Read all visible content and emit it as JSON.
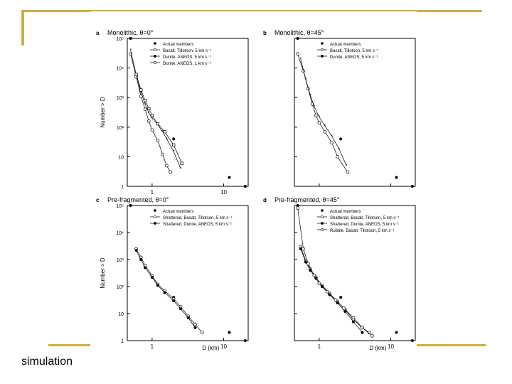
{
  "slide": {
    "caption": "simulation",
    "accent_color": "#c9ae4c"
  },
  "chart_data": [
    {
      "type": "scatter",
      "panel_letter": "a",
      "title": "Monolithic, θ=0°",
      "xlabel": "",
      "ylabel": "Number > D",
      "xscale": "log",
      "yscale": "log",
      "xlim": [
        0.45,
        22
      ],
      "ylim": [
        1,
        100000
      ],
      "x_ticks": [
        "1",
        "10"
      ],
      "y_ticks": [
        "1",
        "10",
        "10²",
        "10³",
        "10⁴",
        "10⁵"
      ],
      "legend": [
        "Actual members",
        "Basalt, Tillotson, 5 km s⁻¹",
        "Dunite, ANEOS, 5 km s⁻¹",
        "Dunite, ANEOS, 1 km s⁻¹"
      ],
      "legend_position": "top-right",
      "series": [
        {
          "name": "Actual members",
          "marker": "dot",
          "x": [
            0.5,
            2.0,
            12.0,
            20.0
          ],
          "y": [
            100000,
            40,
            2,
            1
          ]
        },
        {
          "name": "Basalt, Tillotson, 5 km s⁻¹",
          "marker": "circle",
          "x": [
            0.5,
            0.6,
            0.7,
            0.8,
            0.9,
            1.0,
            1.2,
            1.4,
            1.6,
            1.8
          ],
          "y": [
            30000,
            5000,
            1100,
            400,
            160,
            80,
            35,
            12,
            5,
            3
          ]
        },
        {
          "name": "Dunite, ANEOS, 5 km s⁻¹",
          "marker": "star",
          "x": [
            0.5,
            0.6,
            0.7,
            0.8,
            0.9,
            1.0,
            1.2,
            1.4,
            1.6,
            2.0,
            2.5
          ],
          "y": [
            40000,
            6000,
            1500,
            600,
            300,
            200,
            120,
            70,
            40,
            15,
            4
          ]
        },
        {
          "name": "Dunite, ANEOS, 1 km s⁻¹",
          "marker": "square",
          "x": [
            0.6,
            0.7,
            0.8,
            0.9,
            1.0,
            1.2,
            1.5,
            2.0,
            2.6
          ],
          "y": [
            6000,
            1800,
            800,
            420,
            250,
            130,
            70,
            25,
            6
          ]
        }
      ]
    },
    {
      "type": "scatter",
      "panel_letter": "b",
      "title": "Monolithic, θ=45°",
      "xlabel": "",
      "ylabel": "",
      "xscale": "log",
      "yscale": "log",
      "xlim": [
        0.45,
        22
      ],
      "ylim": [
        1,
        100000
      ],
      "legend": [
        "Actual members",
        "Basalt, Tillotson, 5 km s⁻¹",
        "Dunite, ANEOS, 5 km s⁻¹"
      ],
      "legend_position": "top-right",
      "series": [
        {
          "name": "Actual members",
          "marker": "dot",
          "x": [
            0.5,
            2.0,
            12.0,
            20.0
          ],
          "y": [
            100000,
            40,
            2,
            1
          ]
        },
        {
          "name": "Basalt, Tillotson, 5 km s⁻¹",
          "marker": "circle",
          "x": [
            0.5,
            0.6,
            0.7,
            0.8,
            0.9,
            1.0,
            1.2,
            1.5,
            1.8,
            2.5
          ],
          "y": [
            30000,
            8000,
            2000,
            600,
            250,
            140,
            70,
            30,
            10,
            3
          ]
        },
        {
          "name": "Dunite, ANEOS, 5 km s⁻¹",
          "marker": "star",
          "x": [
            0.55,
            0.65,
            0.75,
            0.85,
            1.0,
            1.2,
            1.5,
            1.9,
            2.4
          ],
          "y": [
            20000,
            4000,
            1200,
            500,
            220,
            110,
            50,
            18,
            5
          ]
        }
      ]
    },
    {
      "type": "scatter",
      "panel_letter": "c",
      "title": "Pre-fragmented, θ=0°",
      "xlabel": "D (km)",
      "ylabel": "Number > D",
      "xscale": "log",
      "yscale": "log",
      "xlim": [
        0.45,
        22
      ],
      "ylim": [
        1,
        100000
      ],
      "x_ticks": [
        "1",
        "10"
      ],
      "y_ticks": [
        "1",
        "10",
        "10²",
        "10³",
        "10⁴",
        "10⁵"
      ],
      "legend": [
        "Actual members",
        "Shattered, Basalt, Tillotson, 5 km s⁻¹",
        "Shattered, Dunite, ANEOS, 5 km s⁻¹"
      ],
      "legend_position": "top-right",
      "series": [
        {
          "name": "Actual members",
          "marker": "dot",
          "x": [
            0.5,
            2.0,
            12.0,
            20.0
          ],
          "y": [
            100000,
            40,
            2,
            1
          ]
        },
        {
          "name": "Shattered, Basalt, Tillotson, 5 km s⁻¹",
          "marker": "circle",
          "x": [
            0.6,
            0.7,
            0.8,
            1.0,
            1.2,
            1.5,
            2.0,
            2.5,
            3.2,
            4.0,
            5.0
          ],
          "y": [
            2500,
            1200,
            600,
            250,
            120,
            70,
            35,
            18,
            8,
            4,
            2
          ]
        },
        {
          "name": "Shattered, Dunite, ANEOS, 5 km s⁻¹",
          "marker": "dot",
          "x": [
            0.6,
            0.7,
            0.8,
            1.0,
            1.2,
            1.5,
            2.0,
            2.5,
            3.2,
            4.0
          ],
          "y": [
            2200,
            1000,
            500,
            220,
            110,
            60,
            30,
            15,
            7,
            3
          ]
        }
      ]
    },
    {
      "type": "scatter",
      "panel_letter": "d",
      "title": "Pre-fragmented, θ=45°",
      "xlabel": "D (km)",
      "ylabel": "",
      "xscale": "log",
      "yscale": "log",
      "xlim": [
        0.45,
        22
      ],
      "ylim": [
        1,
        100000
      ],
      "x_ticks": [
        "1",
        "10"
      ],
      "legend": [
        "Actual members",
        "Shattered, Basalt, Tillotson, 5 km s⁻¹",
        "Shattered, Dunite, ANEOS, 5 km s⁻¹",
        "Rubble, Basalt, Tillotson, 5 km s⁻¹"
      ],
      "legend_position": "top-right",
      "series": [
        {
          "name": "Actual members",
          "marker": "dot",
          "x": [
            0.5,
            2.0,
            12.0,
            20.0
          ],
          "y": [
            100000,
            40,
            2,
            1
          ]
        },
        {
          "name": "Shattered, Basalt, Tillotson, 5 km s⁻¹",
          "marker": "circle",
          "x": [
            0.55,
            0.65,
            0.75,
            0.9,
            1.1,
            1.4,
            1.8,
            2.3,
            3.0,
            4.0,
            5.0
          ],
          "y": [
            3000,
            900,
            450,
            220,
            110,
            55,
            28,
            14,
            6,
            3,
            2
          ]
        },
        {
          "name": "Shattered, Dunite, ANEOS, 5 km s⁻¹",
          "marker": "dot",
          "x": [
            0.55,
            0.65,
            0.75,
            0.9,
            1.1,
            1.4,
            1.8,
            2.3,
            3.0,
            4.0
          ],
          "y": [
            2500,
            800,
            400,
            200,
            100,
            50,
            25,
            12,
            5,
            2
          ]
        },
        {
          "name": "Rubble, Basalt, Tillotson, 5 km s⁻¹",
          "marker": "circle",
          "x": [
            0.5,
            0.6,
            0.7,
            0.85,
            1.0,
            1.3,
            1.7,
            2.2,
            3.0,
            4.0,
            5.5
          ],
          "y": [
            80000,
            2500,
            700,
            260,
            130,
            65,
            32,
            16,
            7,
            3,
            1.5
          ]
        }
      ]
    }
  ]
}
